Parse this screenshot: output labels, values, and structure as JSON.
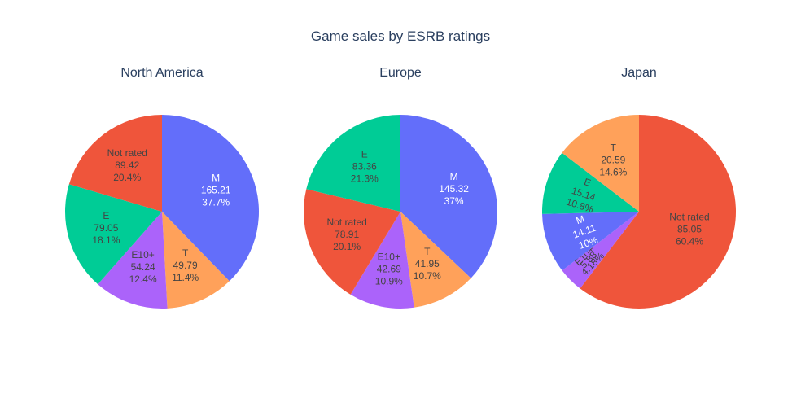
{
  "chart_data": {
    "type": "pie",
    "title": "Game sales by ESRB ratings",
    "colors": {
      "M": "#636efa",
      "Not rated": "#ef553b",
      "E": "#00cc96",
      "E10+": "#ab63fa",
      "T": "#ffa15a"
    },
    "pies": [
      {
        "title": "North America",
        "slices": [
          {
            "label": "M",
            "value": 165.21,
            "percent": "37.7%"
          },
          {
            "label": "T",
            "value": 49.79,
            "percent": "11.4%"
          },
          {
            "label": "E10+",
            "value": 54.24,
            "percent": "12.4%"
          },
          {
            "label": "E",
            "value": 79.05,
            "percent": "18.1%"
          },
          {
            "label": "Not rated",
            "value": 89.42,
            "percent": "20.4%"
          }
        ]
      },
      {
        "title": "Europe",
        "slices": [
          {
            "label": "M",
            "value": 145.32,
            "percent": "37%"
          },
          {
            "label": "T",
            "value": 41.95,
            "percent": "10.7%"
          },
          {
            "label": "E10+",
            "value": 42.69,
            "percent": "10.9%"
          },
          {
            "label": "Not rated",
            "value": 78.91,
            "percent": "20.1%"
          },
          {
            "label": "E",
            "value": 83.36,
            "percent": "21.3%"
          }
        ]
      },
      {
        "title": "Japan",
        "slices": [
          {
            "label": "Not rated",
            "value": 85.05,
            "percent": "60.4%"
          },
          {
            "label": "E10+",
            "value": 5.88,
            "percent": "4.18%"
          },
          {
            "label": "M",
            "value": 14.11,
            "percent": "10%"
          },
          {
            "label": "E",
            "value": 15.14,
            "percent": "10.8%"
          },
          {
            "label": "T",
            "value": 20.59,
            "percent": "14.6%"
          }
        ]
      }
    ]
  }
}
